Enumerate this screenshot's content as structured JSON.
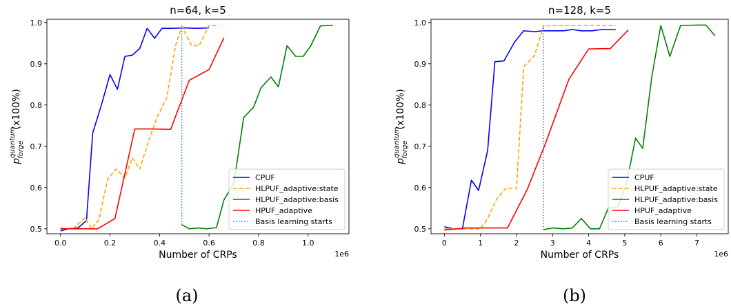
{
  "chart_data": [
    {
      "type": "line",
      "title": "n=64, k=5",
      "xlabel": "Number of CRPs",
      "ylabel_main": "p",
      "ylabel_sup": "quantum",
      "ylabel_sub": "forge",
      "ylabel_suffix": "(x100%)",
      "x_offset_label": "1e6",
      "caption": "(a)",
      "xlim": [
        -0.055,
        1.165
      ],
      "ylim": [
        0.488,
        1.008
      ],
      "xticks": [
        0.0,
        0.2,
        0.4,
        0.6,
        0.8,
        1.0
      ],
      "xtick_labels": [
        "0.0",
        "0.2",
        "0.4",
        "0.6",
        "0.8",
        "1.0"
      ],
      "yticks": [
        0.5,
        0.6,
        0.7,
        0.8,
        0.9,
        1.0
      ],
      "ytick_labels": [
        "0.5",
        "0.6",
        "0.7",
        "0.8",
        "0.9",
        "1.0"
      ],
      "legend_position": "lower-right",
      "series": [
        {
          "name": "CPUF",
          "color": "#0000ff",
          "dash": "solid",
          "points": [
            [
              0,
              0.495
            ],
            [
              0.03,
              0.5
            ],
            [
              0.07,
              0.502
            ],
            [
              0.105,
              0.52
            ],
            [
              0.13,
              0.732
            ],
            [
              0.165,
              0.8
            ],
            [
              0.2,
              0.874
            ],
            [
              0.23,
              0.838
            ],
            [
              0.26,
              0.918
            ],
            [
              0.29,
              0.921
            ],
            [
              0.32,
              0.937
            ],
            [
              0.35,
              0.986
            ],
            [
              0.38,
              0.962
            ],
            [
              0.41,
              0.986
            ],
            [
              0.45,
              0.986
            ],
            [
              0.5,
              0.987
            ],
            [
              0.55,
              0.986
            ],
            [
              0.6,
              0.987
            ]
          ]
        },
        {
          "name": "HLPUF_adaptive:state",
          "color": "#ffa500",
          "dash": "dashed",
          "points": [
            [
              0,
              0.502
            ],
            [
              0.05,
              0.5
            ],
            [
              0.1,
              0.527
            ],
            [
              0.125,
              0.5
            ],
            [
              0.155,
              0.522
            ],
            [
              0.19,
              0.62
            ],
            [
              0.225,
              0.645
            ],
            [
              0.26,
              0.623
            ],
            [
              0.29,
              0.672
            ],
            [
              0.32,
              0.645
            ],
            [
              0.36,
              0.72
            ],
            [
              0.39,
              0.77
            ],
            [
              0.43,
              0.82
            ],
            [
              0.465,
              0.945
            ],
            [
              0.49,
              0.99
            ],
            [
              0.53,
              0.944
            ],
            [
              0.56,
              0.944
            ],
            [
              0.6,
              0.993
            ],
            [
              0.63,
              0.993
            ]
          ]
        },
        {
          "name": "HLPUF_adaptive:basis",
          "color": "#008000",
          "dash": "solid",
          "points": [
            [
              0.49,
              0.51
            ],
            [
              0.52,
              0.5
            ],
            [
              0.56,
              0.502
            ],
            [
              0.59,
              0.5
            ],
            [
              0.63,
              0.503
            ],
            [
              0.66,
              0.57
            ],
            [
              0.7,
              0.61
            ],
            [
              0.74,
              0.77
            ],
            [
              0.78,
              0.795
            ],
            [
              0.81,
              0.842
            ],
            [
              0.85,
              0.868
            ],
            [
              0.88,
              0.844
            ],
            [
              0.915,
              0.944
            ],
            [
              0.95,
              0.918
            ],
            [
              0.98,
              0.918
            ],
            [
              1.01,
              0.943
            ],
            [
              1.05,
              0.992
            ],
            [
              1.1,
              0.993
            ]
          ]
        },
        {
          "name": "HPUF_adaptive",
          "color": "#ff0000",
          "dash": "solid",
          "points": [
            [
              0,
              0.5
            ],
            [
              0.07,
              0.5
            ],
            [
              0.15,
              0.5
            ],
            [
              0.22,
              0.525
            ],
            [
              0.3,
              0.742
            ],
            [
              0.37,
              0.742
            ],
            [
              0.445,
              0.741
            ],
            [
              0.52,
              0.86
            ],
            [
              0.6,
              0.886
            ],
            [
              0.66,
              0.963
            ]
          ]
        }
      ],
      "vline": {
        "name": "Basis learning starts",
        "color": "#1f77b4",
        "x": 0.49,
        "y0": 0.51,
        "y1": 0.993
      }
    },
    {
      "type": "line",
      "title": "n=128, k=5",
      "xlabel": "Number of CRPs",
      "ylabel_main": "p",
      "ylabel_sup": "quantum",
      "ylabel_sub": "forge",
      "ylabel_suffix": "(x100%)",
      "x_offset_label": "1e6",
      "caption": "(b)",
      "xlim": [
        -0.37,
        7.87
      ],
      "ylim": [
        0.488,
        1.008
      ],
      "xticks": [
        0,
        1,
        2,
        3,
        4,
        5,
        6,
        7
      ],
      "xtick_labels": [
        "0",
        "1",
        "2",
        "3",
        "4",
        "5",
        "6",
        "7"
      ],
      "yticks": [
        0.5,
        0.6,
        0.7,
        0.8,
        0.9,
        1.0
      ],
      "ytick_labels": [
        "0.5",
        "0.6",
        "0.7",
        "0.8",
        "0.9",
        "1.0"
      ],
      "legend_position": "lower-right",
      "series": [
        {
          "name": "CPUF",
          "color": "#0000ff",
          "dash": "solid",
          "points": [
            [
              0,
              0.505
            ],
            [
              0.25,
              0.5
            ],
            [
              0.5,
              0.5
            ],
            [
              0.75,
              0.618
            ],
            [
              0.95,
              0.593
            ],
            [
              1.2,
              0.69
            ],
            [
              1.4,
              0.905
            ],
            [
              1.65,
              0.907
            ],
            [
              1.95,
              0.953
            ],
            [
              2.2,
              0.98
            ],
            [
              2.5,
              0.978
            ],
            [
              2.75,
              0.98
            ],
            [
              3.0,
              0.98
            ],
            [
              3.3,
              0.98
            ],
            [
              3.55,
              0.983
            ],
            [
              3.8,
              0.98
            ],
            [
              4.1,
              0.98
            ],
            [
              4.35,
              0.983
            ],
            [
              4.75,
              0.983
            ]
          ]
        },
        {
          "name": "HLPUF_adaptive:state",
          "color": "#ffa500",
          "dash": "dashed",
          "points": [
            [
              0,
              0.5
            ],
            [
              0.5,
              0.5
            ],
            [
              1.0,
              0.5
            ],
            [
              1.2,
              0.525
            ],
            [
              1.45,
              0.572
            ],
            [
              1.7,
              0.598
            ],
            [
              2.0,
              0.598
            ],
            [
              2.2,
              0.893
            ],
            [
              2.5,
              0.92
            ],
            [
              2.75,
              0.992
            ],
            [
              3.3,
              0.993
            ],
            [
              4.1,
              0.993
            ],
            [
              4.75,
              0.993
            ]
          ]
        },
        {
          "name": "HLPUF_adaptive:basis",
          "color": "#008000",
          "dash": "solid",
          "points": [
            [
              2.75,
              0.498
            ],
            [
              3.0,
              0.502
            ],
            [
              3.3,
              0.5
            ],
            [
              3.55,
              0.502
            ],
            [
              3.8,
              0.525
            ],
            [
              4.05,
              0.5
            ],
            [
              4.3,
              0.5
            ],
            [
              4.55,
              0.551
            ],
            [
              4.8,
              0.551
            ],
            [
              5.05,
              0.61
            ],
            [
              5.3,
              0.72
            ],
            [
              5.5,
              0.695
            ],
            [
              5.75,
              0.868
            ],
            [
              6.0,
              0.993
            ],
            [
              6.25,
              0.918
            ],
            [
              6.55,
              0.993
            ],
            [
              7.1,
              0.994
            ],
            [
              7.25,
              0.994
            ],
            [
              7.5,
              0.968
            ]
          ]
        },
        {
          "name": "HPUF_adaptive",
          "color": "#ff0000",
          "dash": "solid",
          "points": [
            [
              0,
              0.497
            ],
            [
              0.6,
              0.502
            ],
            [
              1.2,
              0.502
            ],
            [
              1.75,
              0.502
            ],
            [
              2.3,
              0.596
            ],
            [
              2.8,
              0.706
            ],
            [
              3.45,
              0.862
            ],
            [
              4.0,
              0.936
            ],
            [
              4.6,
              0.937
            ],
            [
              5.1,
              0.982
            ]
          ]
        }
      ],
      "vline": {
        "name": "Basis learning starts",
        "color": "#1f77b4",
        "x": 2.75,
        "y0": 0.498,
        "y1": 0.993
      }
    }
  ]
}
